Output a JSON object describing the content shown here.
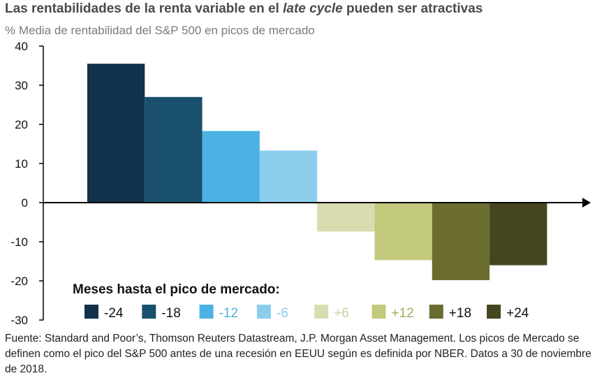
{
  "title": {
    "before": "Las rentabilidades de la renta variable en el ",
    "italic": "late cycle",
    "after": " pueden ser atractivas"
  },
  "subtitle": "% Media de rentabilidad del S&P 500 en picos de mercado",
  "legend_title": "Meses hasta el pico de mercado:",
  "source": "Fuente: Standard and Poor’s, Thomson Reuters Datastream, J.P. Morgan Asset Management. Los picos de Mercado se definen como el pico del S&P 500 antes de una recesión en EEUU según es definida por NBER. Datos a 30 de noviembre de 2018.",
  "chart_data": {
    "type": "bar",
    "ylim": [
      -30,
      40
    ],
    "yticks": [
      40,
      30,
      20,
      10,
      0,
      -10,
      -20,
      -30
    ],
    "categories": [
      "-24",
      "-18",
      "-12",
      "-6",
      "+6",
      "+12",
      "+18",
      "+24"
    ],
    "values": [
      35.5,
      27,
      18.3,
      13.3,
      -7.4,
      -14.7,
      -19.8,
      -16
    ],
    "colors": [
      "#10324a",
      "#19506e",
      "#4bb2e3",
      "#8ccdee",
      "#d9dcae",
      "#c3c97d",
      "#6a6d2f",
      "#45461f"
    ],
    "legend_text_colors": [
      "#111111",
      "#111111",
      "#4bb2e3",
      "#8ccdee",
      "#cbcf9a",
      "#a7ad55",
      "#111111",
      "#111111"
    ],
    "legend_placement": "bottom-left inside plot",
    "grid": false
  }
}
